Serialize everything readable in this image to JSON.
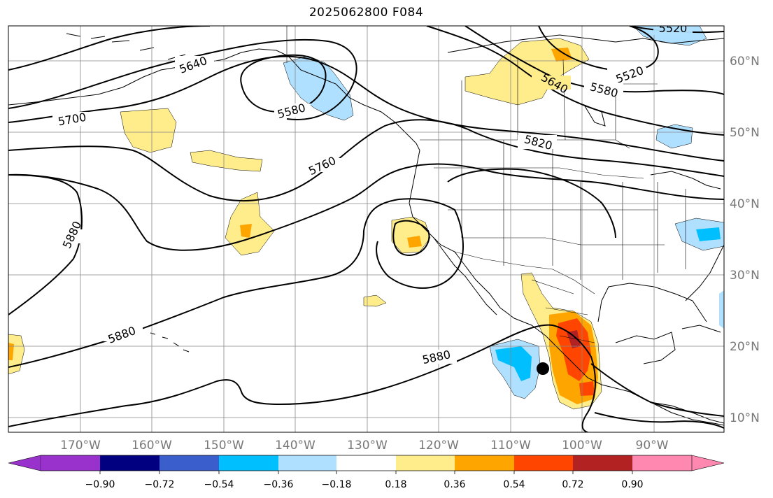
{
  "title": "2025062800 F084",
  "lon_labels": [
    "170°W",
    "160°W",
    "150°W",
    "140°W",
    "130°W",
    "120°W",
    "110°W",
    "100°W",
    "90°W"
  ],
  "lat_labels": [
    "60°N",
    "50°N",
    "40°N",
    "30°N",
    "20°N",
    "10°N"
  ],
  "contour_labels": [
    "5520",
    "5520",
    "5580",
    "5580",
    "5640",
    "5640",
    "5700",
    "5760",
    "5820",
    "5880",
    "5880",
    "5880"
  ],
  "colorbar": {
    "ticks": [
      "−0.90",
      "−0.72",
      "−0.54",
      "−0.36",
      "−0.18",
      "0.18",
      "0.36",
      "0.54",
      "0.72",
      "0.90"
    ],
    "colors": [
      "#9932cc",
      "#000080",
      "#3a5fcd",
      "#00bfff",
      "#b0e0ff",
      "#ffffff",
      "#ffec8b",
      "#ffa500",
      "#ff4500",
      "#b22222",
      "#ff88b0"
    ]
  },
  "fill_colors": {
    "light_yellow": "#ffec8b",
    "orange": "#ffa500",
    "red_orange": "#ff4500",
    "dark_red": "#b22222",
    "light_blue": "#b0e0ff",
    "deep_sky_blue": "#00bfff"
  },
  "marker": "filled-circle"
}
